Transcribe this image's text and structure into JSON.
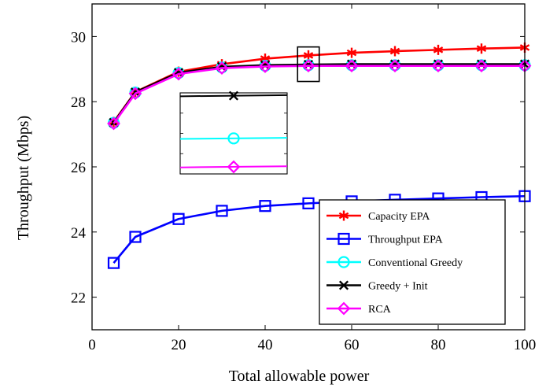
{
  "chart_data": {
    "type": "line",
    "xlabel": "Total allowable power",
    "ylabel": "Throughput (Mbps)",
    "xlim": [
      0,
      100
    ],
    "ylim": [
      21,
      31
    ],
    "xticks": [
      0,
      20,
      40,
      60,
      80,
      100
    ],
    "yticks": [
      22,
      24,
      26,
      28,
      30
    ],
    "grid": false,
    "legend_position": "bottom-right",
    "x": [
      5,
      10,
      20,
      30,
      40,
      50,
      60,
      70,
      80,
      90,
      100
    ],
    "series": [
      {
        "name": "Capacity EPA",
        "color": "#ff0000",
        "marker": "asterisk",
        "values": [
          27.38,
          28.3,
          28.92,
          29.15,
          29.32,
          29.42,
          29.5,
          29.55,
          29.59,
          29.63,
          29.66
        ]
      },
      {
        "name": "Throughput EPA",
        "color": "#0000ff",
        "marker": "square",
        "values": [
          23.05,
          23.85,
          24.4,
          24.65,
          24.8,
          24.88,
          24.94,
          24.99,
          25.03,
          25.07,
          25.1
        ]
      },
      {
        "name": "Conventional Greedy",
        "color": "#00ffff",
        "marker": "circle",
        "values": [
          27.35,
          28.28,
          28.88,
          29.05,
          29.1,
          29.12,
          29.12,
          29.12,
          29.12,
          29.12,
          29.12
        ]
      },
      {
        "name": "Greedy + Init",
        "color": "#000000",
        "marker": "x",
        "values": [
          27.36,
          28.29,
          28.89,
          29.07,
          29.12,
          29.14,
          29.15,
          29.15,
          29.15,
          29.15,
          29.15
        ]
      },
      {
        "name": "RCA",
        "color": "#ff00ff",
        "marker": "diamond",
        "values": [
          27.33,
          28.25,
          28.85,
          29.03,
          29.08,
          29.1,
          29.1,
          29.1,
          29.1,
          29.1,
          29.1
        ]
      }
    ],
    "zoom_inset": {
      "xlim": [
        47.5,
        52.5
      ],
      "ylim": [
        28.62,
        29.68
      ],
      "source_series": [
        "Greedy + Init",
        "Conventional Greedy",
        "RCA"
      ]
    }
  }
}
